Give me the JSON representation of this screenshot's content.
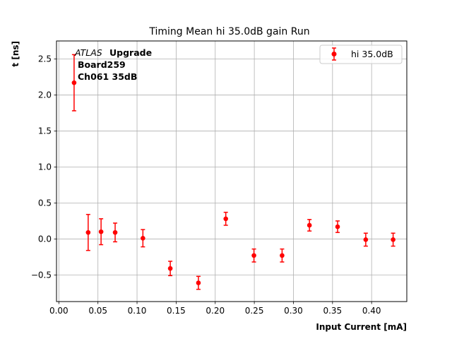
{
  "chart_data": {
    "type": "scatter",
    "title": "Timing Mean hi 35.0dB gain Run",
    "xlabel": "Input Current [mA]",
    "ylabel": "t [ns]",
    "xlim": [
      -0.003,
      0.445
    ],
    "ylim": [
      -0.87,
      2.75
    ],
    "xticks": [
      0.0,
      0.05,
      0.1,
      0.15,
      0.2,
      0.25,
      0.3,
      0.35,
      0.4
    ],
    "xtick_labels": [
      "0.00",
      "0.05",
      "0.10",
      "0.15",
      "0.20",
      "0.25",
      "0.30",
      "0.35",
      "0.40"
    ],
    "yticks": [
      -0.5,
      0.0,
      0.5,
      1.0,
      1.5,
      2.0,
      2.5
    ],
    "ytick_labels": [
      "−0.5",
      "0.0",
      "0.5",
      "1.0",
      "1.5",
      "2.0",
      "2.5"
    ],
    "grid": true,
    "legend_position": "top-right",
    "annotation": {
      "atlas": "ATLAS",
      "upgrade": "Upgrade",
      "line2": "Board259",
      "line3": "Ch061 35dB"
    },
    "series": [
      {
        "name": "hi 35.0dB",
        "color": "#ff0000",
        "x": [
          0.0195,
          0.0375,
          0.054,
          0.072,
          0.1075,
          0.1425,
          0.1785,
          0.2135,
          0.2495,
          0.2855,
          0.3205,
          0.3565,
          0.3925,
          0.4275
        ],
        "y": [
          2.17,
          0.09,
          0.1,
          0.09,
          0.01,
          -0.41,
          -0.61,
          0.28,
          -0.23,
          -0.23,
          0.19,
          0.17,
          -0.01,
          -0.01
        ],
        "yerr": [
          0.39,
          0.25,
          0.18,
          0.13,
          0.12,
          0.1,
          0.09,
          0.09,
          0.09,
          0.09,
          0.08,
          0.08,
          0.09,
          0.09
        ]
      }
    ]
  }
}
